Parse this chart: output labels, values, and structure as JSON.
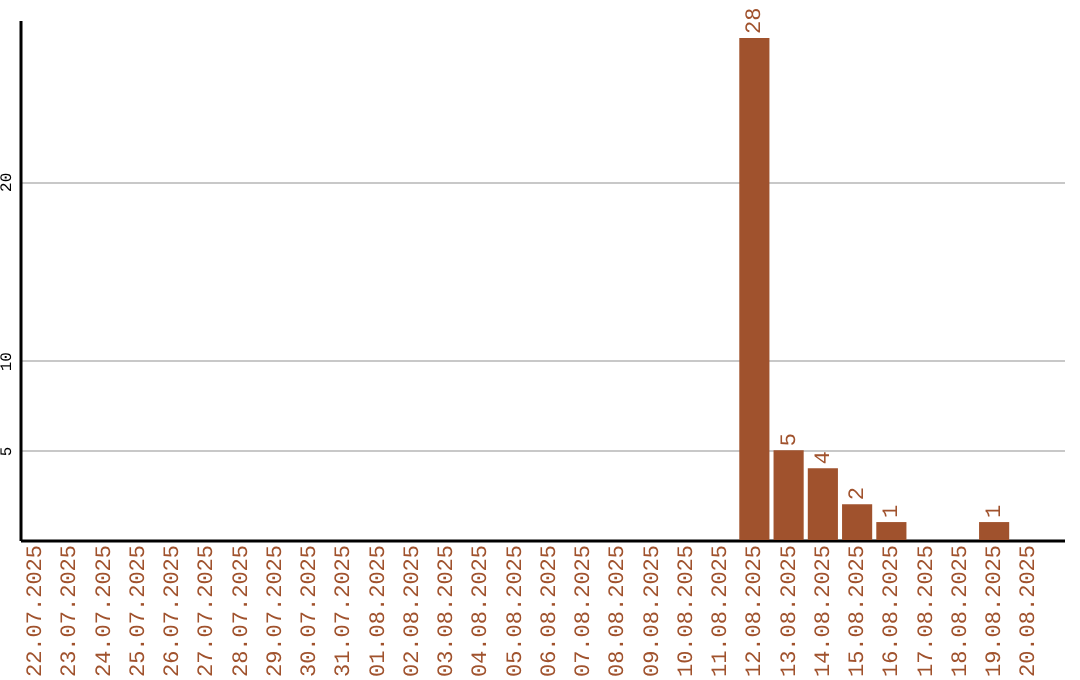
{
  "chart_data": {
    "type": "bar",
    "categories": [
      "22.07.2025",
      "23.07.2025",
      "24.07.2025",
      "25.07.2025",
      "26.07.2025",
      "27.07.2025",
      "28.07.2025",
      "29.07.2025",
      "30.07.2025",
      "31.07.2025",
      "01.08.2025",
      "02.08.2025",
      "03.08.2025",
      "04.08.2025",
      "05.08.2025",
      "06.08.2025",
      "07.08.2025",
      "08.08.2025",
      "09.08.2025",
      "10.08.2025",
      "11.08.2025",
      "12.08.2025",
      "13.08.2025",
      "14.08.2025",
      "15.08.2025",
      "16.08.2025",
      "17.08.2025",
      "18.08.2025",
      "19.08.2025",
      "20.08.2025"
    ],
    "values": [
      null,
      null,
      null,
      null,
      null,
      null,
      null,
      null,
      null,
      null,
      null,
      null,
      null,
      null,
      null,
      null,
      null,
      null,
      null,
      null,
      null,
      28,
      5,
      4,
      2,
      1,
      null,
      null,
      1,
      null
    ],
    "color": "#a0522d",
    "ylim": [
      0,
      29
    ],
    "yticks": [
      5,
      10,
      20
    ],
    "grid": "y",
    "data_labels": true
  }
}
